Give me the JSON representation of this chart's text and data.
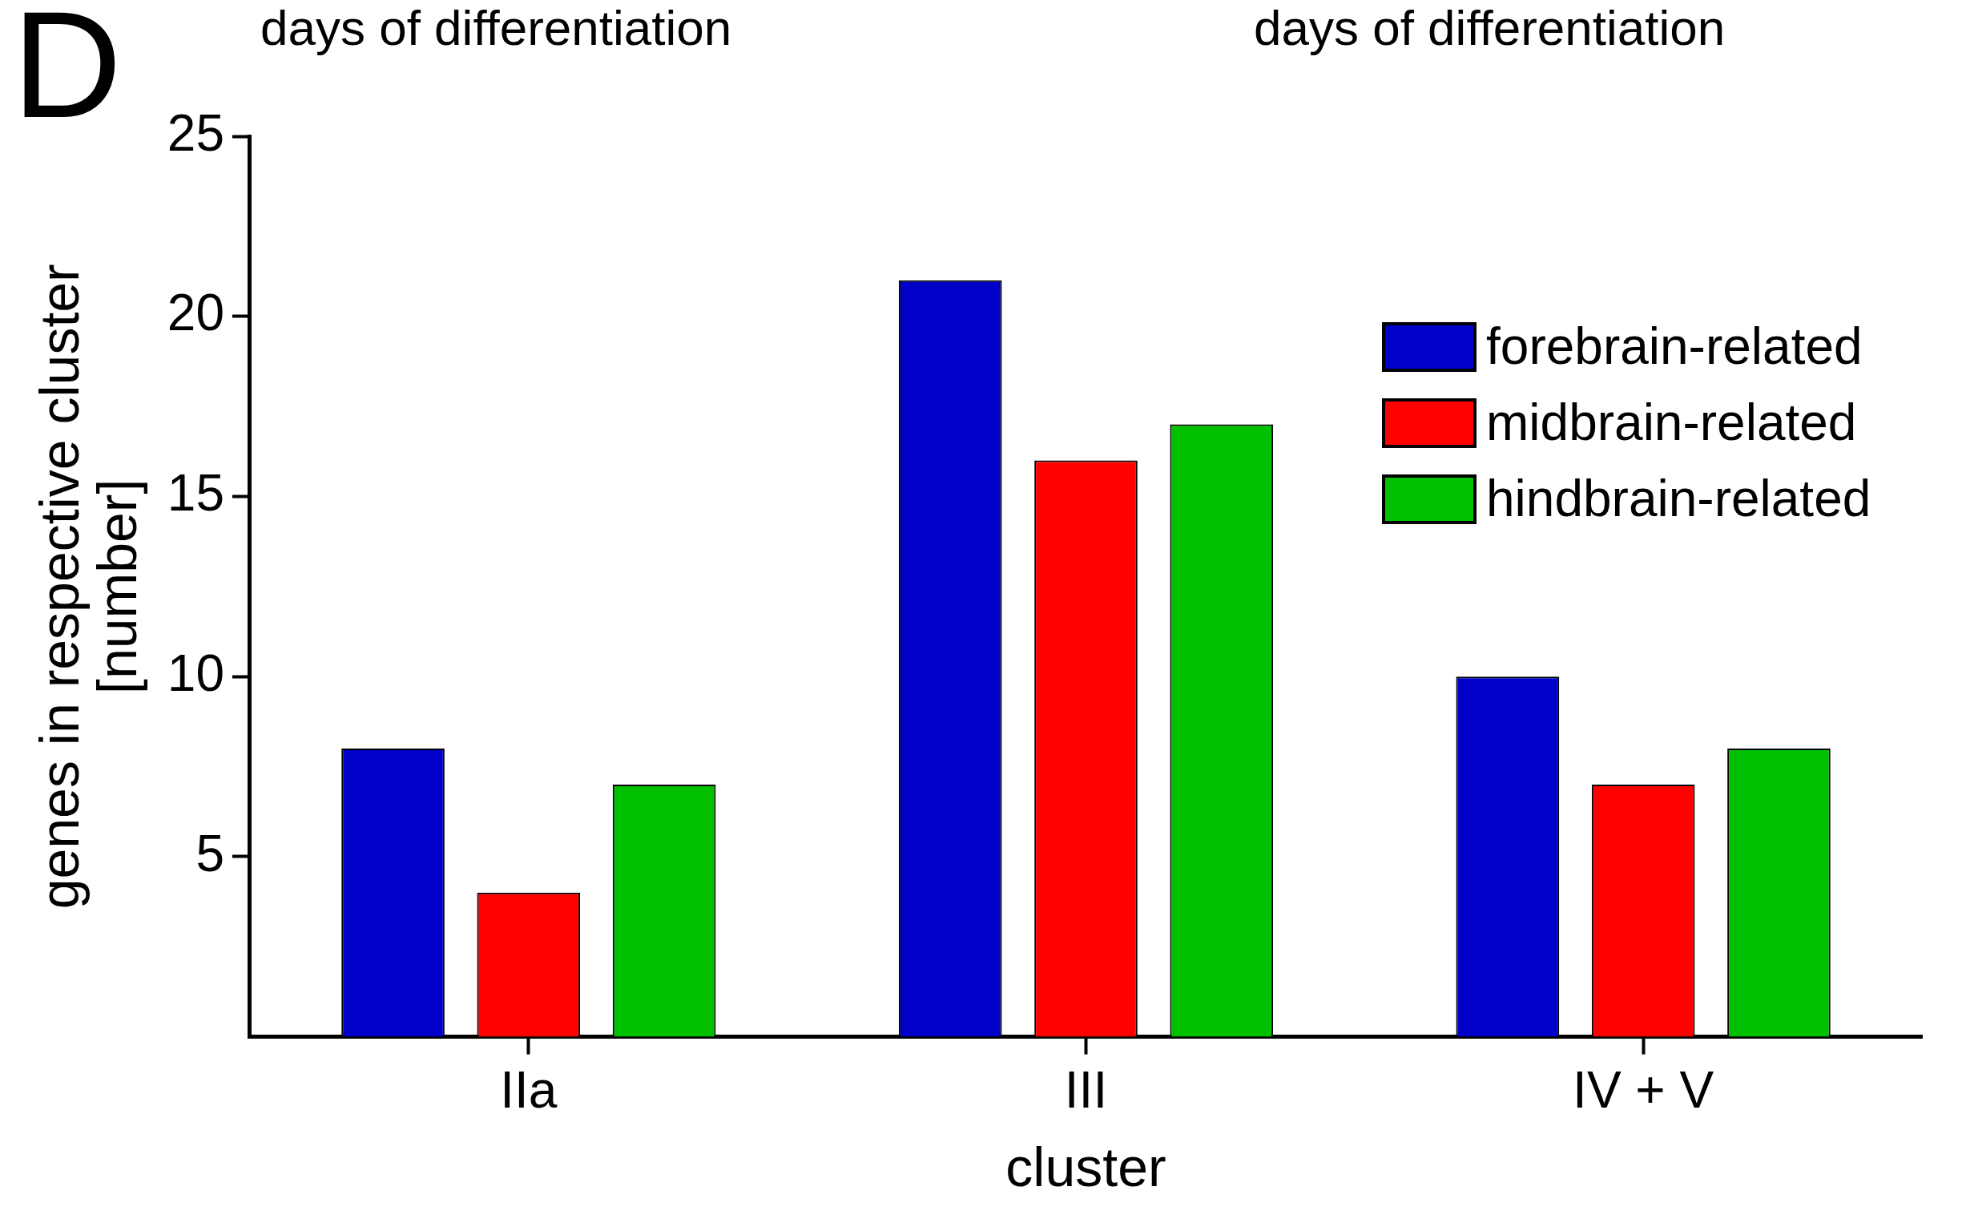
{
  "chart_data": {
    "type": "bar",
    "xlabel": "cluster",
    "ylabel": "genes in respective cluster\n[number]",
    "annotations": [
      "D",
      "days of differentiation",
      "days of differentiation"
    ],
    "categories": [
      "IIa",
      "III",
      "IV + V"
    ],
    "series": [
      {
        "name": "forebrain-related",
        "color": "#0000c8",
        "values": [
          8,
          21,
          10
        ]
      },
      {
        "name": "midbrain-related",
        "color": "#ff0000",
        "values": [
          4,
          16,
          7
        ]
      },
      {
        "name": "hindbrain-related",
        "color": "#00c000",
        "values": [
          7,
          17,
          8
        ]
      }
    ],
    "ylim": [
      0,
      25
    ],
    "yticks": [
      5,
      10,
      15,
      20,
      25
    ],
    "grid": false,
    "legend": "top right"
  }
}
